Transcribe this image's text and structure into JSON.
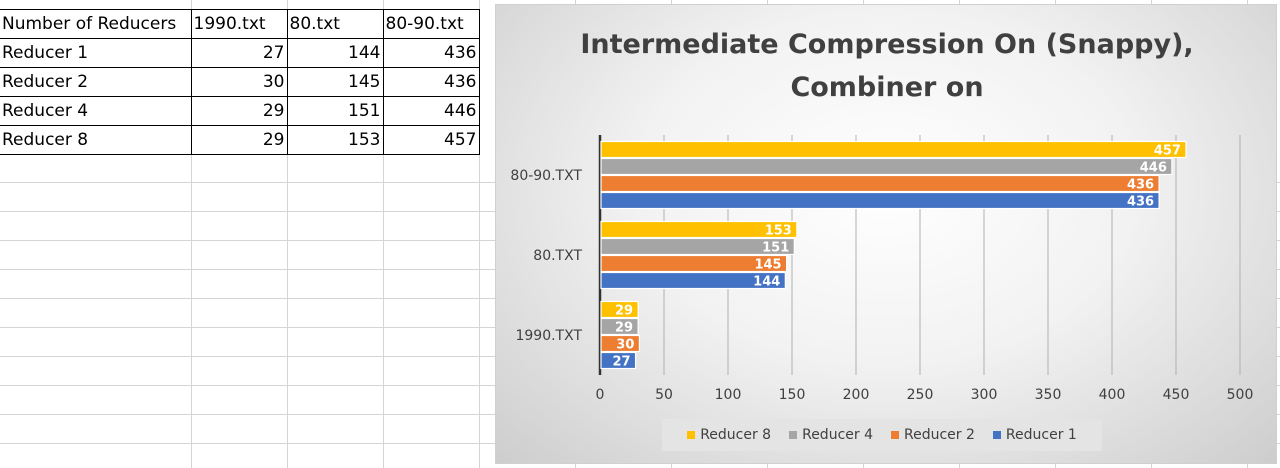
{
  "table": {
    "headers": [
      "Number of Reducers",
      "1990.txt",
      "80.txt",
      "80-90.txt"
    ],
    "rows": [
      {
        "label": "Reducer 1",
        "values": [
          "27",
          "144",
          "436"
        ]
      },
      {
        "label": "Reducer 2",
        "values": [
          "30",
          "145",
          "436"
        ]
      },
      {
        "label": "Reducer 4",
        "values": [
          "29",
          "151",
          "446"
        ]
      },
      {
        "label": "Reducer 8",
        "values": [
          "29",
          "153",
          "457"
        ]
      }
    ]
  },
  "chart_data": {
    "type": "bar",
    "orientation": "horizontal",
    "title": [
      "Intermediate Compression On (Snappy),",
      "Combiner on"
    ],
    "categories": [
      "80-90.TXT",
      "80.TXT",
      "1990.TXT"
    ],
    "series": [
      {
        "name": "Reducer 8",
        "color": "#FFC000",
        "values": [
          457,
          153,
          29
        ]
      },
      {
        "name": "Reducer 4",
        "color": "#A5A5A5",
        "values": [
          446,
          151,
          29
        ]
      },
      {
        "name": "Reducer 2",
        "color": "#ED7D31",
        "values": [
          436,
          145,
          30
        ]
      },
      {
        "name": "Reducer 1",
        "color": "#4472C4",
        "values": [
          436,
          144,
          27
        ]
      }
    ],
    "xlim": [
      0,
      500
    ],
    "xticks": [
      "0",
      "50",
      "100",
      "150",
      "200",
      "250",
      "300",
      "350",
      "400",
      "450",
      "500"
    ],
    "grid": true,
    "data_labels": true,
    "legend_position": "bottom"
  }
}
